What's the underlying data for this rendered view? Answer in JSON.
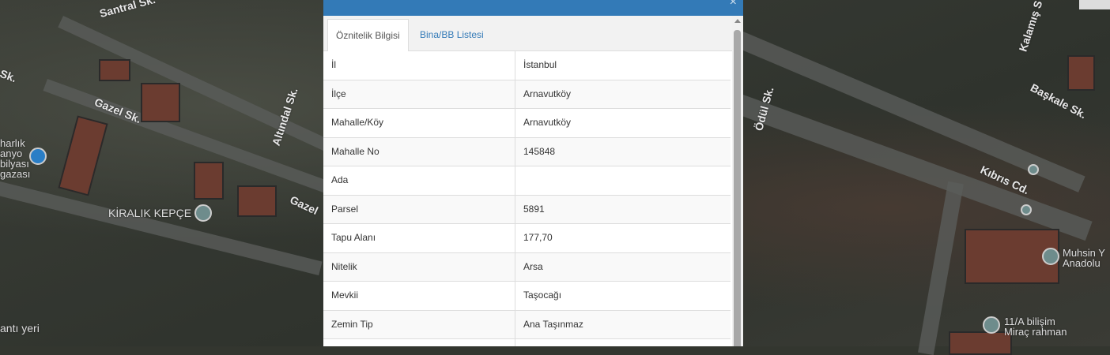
{
  "map": {
    "labels": [
      "Santral Sk.",
      "Sk.",
      "Gazel Sk.",
      "Altındal Sk.",
      "Gazel",
      "Kalamış S",
      "Başkale Sk.",
      "Ödül Sk.",
      "Kıbrıs Cd."
    ],
    "pois": [
      "KİRALIK KEPÇE",
      "harlık\nanyo\nbilyası\ngazası",
      "antı yeri",
      "Muhsin Y\nAnadolu",
      "11/A bilişim\nMiraç rahman"
    ]
  },
  "panel": {
    "header_color": "#337ab7",
    "close_icon": "close-icon",
    "tabs": [
      {
        "label": "Öznitelik Bilgisi",
        "active": true
      },
      {
        "label": "Bina/BB Listesi",
        "active": false
      }
    ],
    "rows": [
      {
        "label": "İl",
        "value": "İstanbul"
      },
      {
        "label": "İlçe",
        "value": "Arnavutköy"
      },
      {
        "label": "Mahalle/Köy",
        "value": "Arnavutköy"
      },
      {
        "label": "Mahalle No",
        "value": "145848"
      },
      {
        "label": "Ada",
        "value": ""
      },
      {
        "label": "Parsel",
        "value": "5891"
      },
      {
        "label": "Tapu Alanı",
        "value": "177,70"
      },
      {
        "label": "Nitelik",
        "value": "Arsa"
      },
      {
        "label": "Mevkii",
        "value": "Taşocağı"
      },
      {
        "label": "Zemin Tip",
        "value": "Ana Taşınmaz"
      }
    ]
  }
}
